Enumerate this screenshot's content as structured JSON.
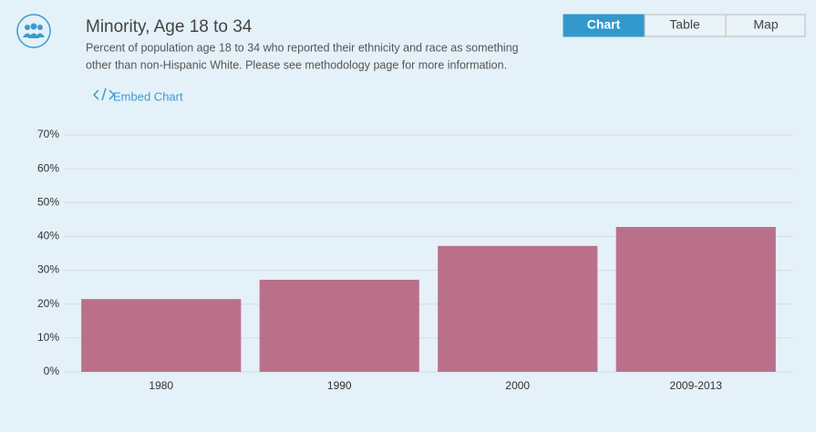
{
  "header": {
    "title": "Minority, Age 18 to 34",
    "subtitle": [
      "Percent of population age 18 to 34 who reported their ethnicity and race as something",
      "other than non-Hispanic White. Please see methodology page for more information."
    ],
    "embed": "Embed Chart"
  },
  "tabs": [
    "Chart",
    "Table",
    "Map"
  ],
  "chart_data": {
    "type": "bar",
    "categories": [
      "1980",
      "1990",
      "2000",
      "2009-2013"
    ],
    "values": [
      21.5,
      27.2,
      37.2,
      42.8
    ],
    "color": "#bb7089",
    "ylim": [
      0,
      70
    ],
    "yticks": [
      {
        "value": 0,
        "label": "0%"
      },
      {
        "value": 10,
        "label": "10%"
      },
      {
        "value": 20,
        "label": "20%"
      },
      {
        "value": 30,
        "label": "30%"
      },
      {
        "value": 40,
        "label": "40%"
      },
      {
        "value": 50,
        "label": "50%"
      },
      {
        "value": 60,
        "label": "60%"
      },
      {
        "value": 70,
        "label": "70%"
      }
    ],
    "grid": true
  }
}
